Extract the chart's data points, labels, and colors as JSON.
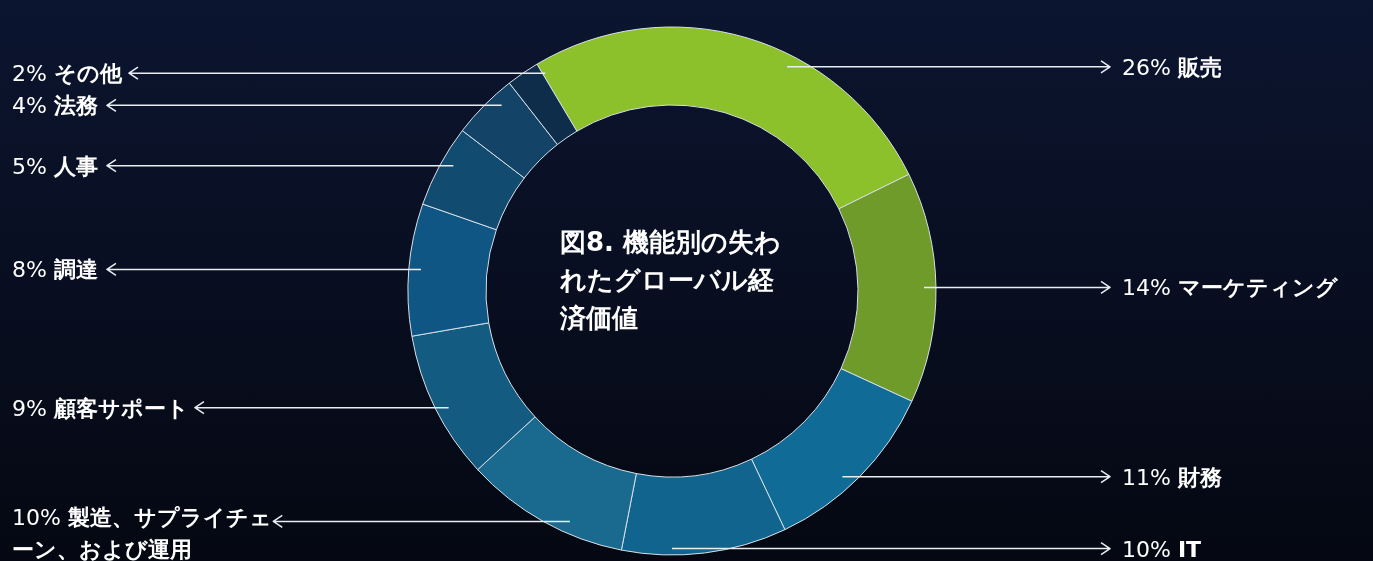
{
  "chart_data": {
    "type": "donut",
    "title": "図8. 機能別の失われたグローバル経済価値",
    "categories": [
      "販売",
      "マーケティング",
      "財務",
      "IT",
      "製造、サプライチェーン、および運用",
      "顧客サポート",
      "調達",
      "人事",
      "法務",
      "その他"
    ],
    "values": [
      26,
      14,
      11,
      10,
      10,
      9,
      8,
      5,
      4,
      2
    ],
    "value_labels": [
      "26%",
      "14%",
      "11%",
      "10%",
      "10%",
      "9%",
      "8%",
      "5%",
      "4%",
      "2%"
    ],
    "colors": [
      "#8cc12b",
      "#6e9b2a",
      "#106b97",
      "#11648d",
      "#1a6a90",
      "#145b82",
      "#0f5685",
      "#114b70",
      "#134366",
      "#0e2d4b"
    ]
  }
}
